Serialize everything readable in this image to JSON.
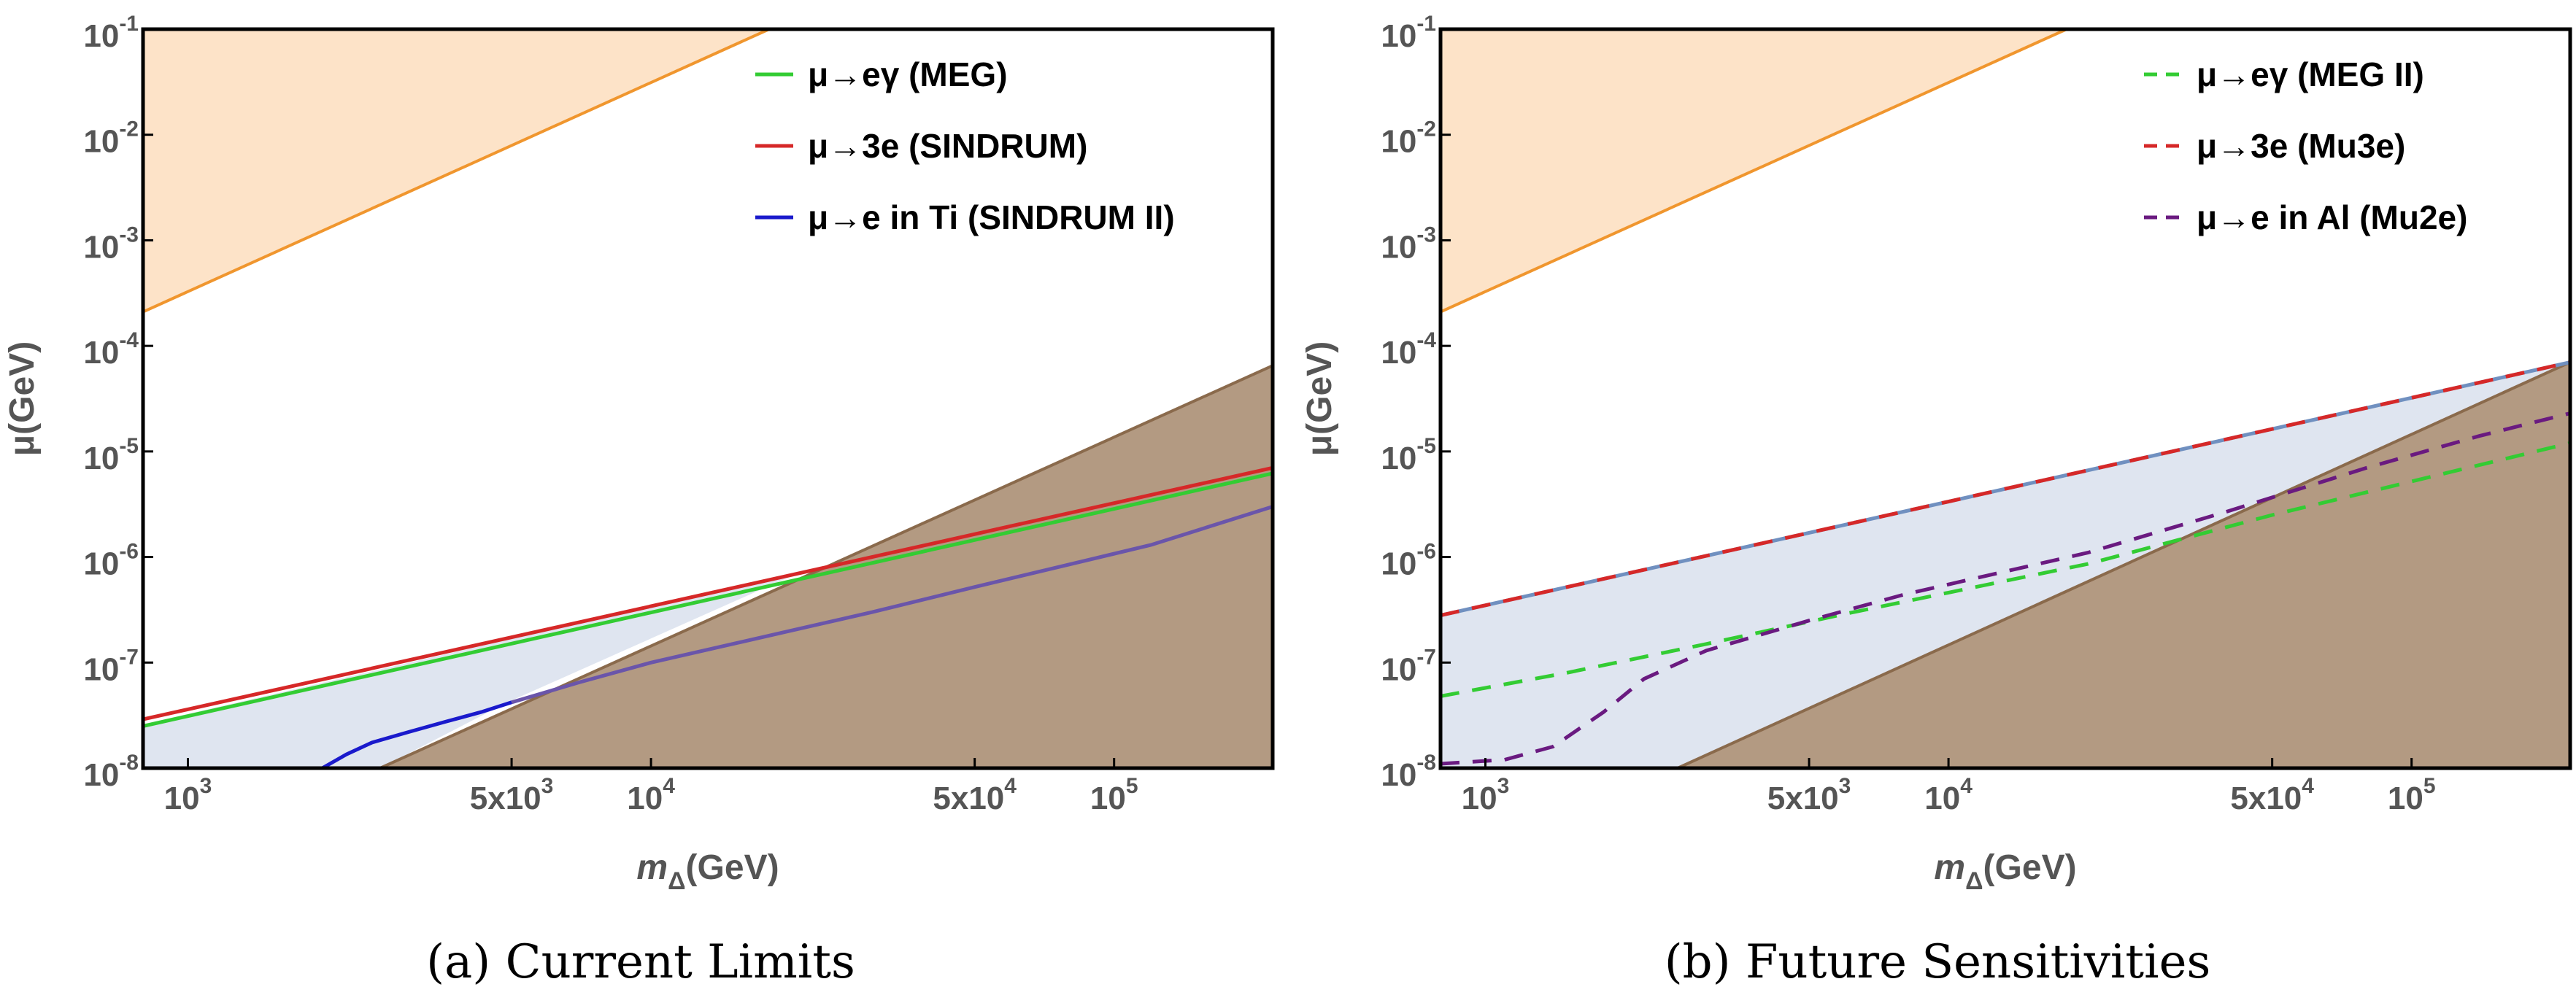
{
  "chart_data": [
    {
      "type": "line",
      "caption": "(a) Current Limits",
      "xlabel_main": "m",
      "xlabel_sub": "Δ",
      "xlabel_unit": "(GeV)",
      "ylabel": "μ(GeV)",
      "xscale": "log",
      "yscale": "log",
      "xlim": [
        800,
        220000
      ],
      "ylim": [
        1e-08,
        0.1
      ],
      "xticks": [
        {
          "value": 1000,
          "base": "10",
          "exp": "3"
        },
        {
          "value": 5000,
          "base": "5x10",
          "exp": "3"
        },
        {
          "value": 10000,
          "base": "10",
          "exp": "4"
        },
        {
          "value": 50000,
          "base": "5x10",
          "exp": "4"
        },
        {
          "value": 100000,
          "base": "10",
          "exp": "5"
        }
      ],
      "yticks": [
        {
          "value": 1e-08,
          "base": "10",
          "exp": "-8"
        },
        {
          "value": 1e-07,
          "base": "10",
          "exp": "-7"
        },
        {
          "value": 1e-06,
          "base": "10",
          "exp": "-6"
        },
        {
          "value": 1e-05,
          "base": "10",
          "exp": "-5"
        },
        {
          "value": 0.0001,
          "base": "10",
          "exp": "-4"
        },
        {
          "value": 0.001,
          "base": "10",
          "exp": "-3"
        },
        {
          "value": 0.01,
          "base": "10",
          "exp": "-2"
        },
        {
          "value": 0.1,
          "base": "10",
          "exp": "-1"
        }
      ],
      "regions": [
        {
          "color": "#fde3c8",
          "edge": "#f0962e",
          "points": [
            [
              800,
              0.1
            ],
            [
              800,
              0.00021
            ],
            [
              18000,
              0.1
            ]
          ]
        },
        {
          "color": "#dfe5f0",
          "edge": "none",
          "points": [
            [
              800,
              2.6e-08
            ],
            [
              21000,
              7.2e-07
            ],
            [
              4900,
              4.2e-08
            ],
            [
              2600,
              1e-08
            ],
            [
              800,
              1e-08
            ]
          ]
        },
        {
          "color": "#b39a82",
          "edge": "#8a6a4c",
          "points": [
            [
              2600,
              1e-08
            ],
            [
              220000,
              6.5e-05
            ],
            [
              220000,
              1e-08
            ]
          ]
        }
      ],
      "series": [
        {
          "name": "μ→eγ (MEG)",
          "color": "#33cc33",
          "dash": "solid",
          "legend": true,
          "x": [
            800,
            220000
          ],
          "y": [
            2.5e-08,
            6.2e-06
          ]
        },
        {
          "name": "μ→3e (SINDRUM)",
          "color": "#d62828",
          "dash": "solid",
          "legend": true,
          "x": [
            800,
            220000
          ],
          "y": [
            2.9e-08,
            7e-06
          ]
        },
        {
          "name": "μ→e in Ti (SINDRUM II)",
          "color": "#1a1acc",
          "dash": "solid",
          "legend": true,
          "x": [
            1950,
            2200,
            2500,
            3000,
            3600,
            4300,
            5000
          ],
          "y": [
            1e-08,
            1.35e-08,
            1.75e-08,
            2.2e-08,
            2.75e-08,
            3.4e-08,
            4.2e-08
          ]
        },
        {
          "name": "",
          "color": "#6a55aa",
          "dash": "solid",
          "legend": false,
          "x": [
            5000,
            7000,
            10000,
            15000,
            20000,
            30000,
            50000,
            80000,
            120000,
            220000
          ],
          "y": [
            4.2e-08,
            6.5e-08,
            1e-07,
            1.5e-07,
            2e-07,
            3e-07,
            5.2e-07,
            8.5e-07,
            1.3e-06,
            3e-06
          ]
        }
      ]
    },
    {
      "type": "line",
      "caption": "(b) Future Sensitivities",
      "xlabel_main": "m",
      "xlabel_sub": "Δ",
      "xlabel_unit": "(GeV)",
      "ylabel": "μ(GeV)",
      "xscale": "log",
      "yscale": "log",
      "xlim": [
        800,
        220000
      ],
      "ylim": [
        1e-08,
        0.1
      ],
      "xticks": [
        {
          "value": 1000,
          "base": "10",
          "exp": "3"
        },
        {
          "value": 5000,
          "base": "5x10",
          "exp": "3"
        },
        {
          "value": 10000,
          "base": "10",
          "exp": "4"
        },
        {
          "value": 50000,
          "base": "5x10",
          "exp": "4"
        },
        {
          "value": 100000,
          "base": "10",
          "exp": "5"
        }
      ],
      "yticks": [
        {
          "value": 1e-08,
          "base": "10",
          "exp": "-8"
        },
        {
          "value": 1e-07,
          "base": "10",
          "exp": "-7"
        },
        {
          "value": 1e-06,
          "base": "10",
          "exp": "-6"
        },
        {
          "value": 1e-05,
          "base": "10",
          "exp": "-5"
        },
        {
          "value": 0.0001,
          "base": "10",
          "exp": "-4"
        },
        {
          "value": 0.001,
          "base": "10",
          "exp": "-3"
        },
        {
          "value": 0.01,
          "base": "10",
          "exp": "-2"
        },
        {
          "value": 0.1,
          "base": "10",
          "exp": "-1"
        }
      ],
      "regions": [
        {
          "color": "#fde3c8",
          "edge": "#f0962e",
          "points": [
            [
              800,
              0.1
            ],
            [
              800,
              0.00021
            ],
            [
              18000,
              0.1
            ]
          ]
        },
        {
          "color": "#dfe5f0",
          "edge": "none",
          "points": [
            [
              800,
              2.8e-07
            ],
            [
              220000,
              7e-05
            ],
            [
              2600,
              1e-08
            ],
            [
              800,
              1e-08
            ]
          ]
        },
        {
          "color": "#b39a82",
          "edge": "#8a6a4c",
          "points": [
            [
              2600,
              1e-08
            ],
            [
              220000,
              7e-05
            ],
            [
              220000,
              1e-08
            ]
          ]
        }
      ],
      "series": [
        {
          "name": "",
          "color": "#7090c0",
          "dash": "solid",
          "legend": false,
          "x": [
            800,
            220000
          ],
          "y": [
            2.8e-07,
            7e-05
          ]
        },
        {
          "name": "μ→eγ (MEG II)",
          "color": "#33cc33",
          "dash": "dashed",
          "legend": true,
          "x": [
            800,
            1500,
            3000,
            6000,
            10000,
            20000,
            50000,
            100000,
            220000
          ],
          "y": [
            4.8e-08,
            8e-08,
            1.5e-07,
            2.9e-07,
            4.6e-07,
            8.6e-07,
            2.5e-06,
            5.2e-06,
            1.2e-05
          ]
        },
        {
          "name": "μ→3e (Mu3e)",
          "color": "#d62828",
          "dash": "dashed",
          "legend": true,
          "x": [
            800,
            220000
          ],
          "y": [
            2.8e-07,
            7e-05
          ]
        },
        {
          "name": "μ→e in Al (Mu2e)",
          "color": "#6a1a80",
          "dash": "dashed",
          "legend": true,
          "x": [
            800,
            1100,
            1400,
            1800,
            2200,
            3000,
            5000,
            8000,
            12000,
            20000,
            40000,
            80000,
            140000,
            220000
          ],
          "y": [
            1.1e-08,
            1.2e-08,
            1.6e-08,
            3.4e-08,
            7e-08,
            1.3e-07,
            2.5e-07,
            4.4e-07,
            6.6e-07,
            1.1e-06,
            2.7e-06,
            7e-06,
            1.4e-05,
            2.3e-05
          ]
        }
      ]
    }
  ]
}
